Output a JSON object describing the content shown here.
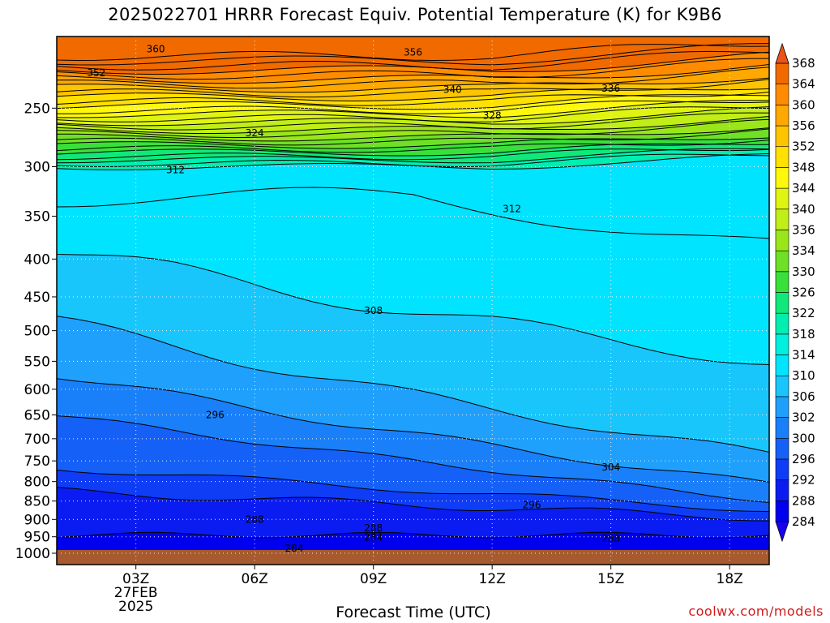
{
  "title": "2025022701 HRRR Forecast Equiv. Potential Temperature (K) for K9B6",
  "credit": "coolwx.com/models",
  "chart_data": {
    "type": "heatmap",
    "title": "2025022701 HRRR Forecast Equiv. Potential Temperature (K) for K9B6",
    "xlabel": "Forecast Time (UTC)",
    "ylabel": "",
    "x_ticks": [
      {
        "hour": 3,
        "label": "03Z"
      },
      {
        "hour": 6,
        "label": "06Z"
      },
      {
        "hour": 9,
        "label": "09Z"
      },
      {
        "hour": 12,
        "label": "12Z"
      },
      {
        "hour": 15,
        "label": "15Z"
      },
      {
        "hour": 18,
        "label": "18Z"
      }
    ],
    "date_label": [
      "27FEB",
      "2025"
    ],
    "xlim": [
      1,
      19
    ],
    "y_ticks": [
      250,
      300,
      350,
      400,
      450,
      500,
      550,
      600,
      650,
      700,
      750,
      800,
      850,
      900,
      950,
      1000
    ],
    "ylim_hpa": [
      200,
      1000
    ],
    "y_scale": "log",
    "colorbar": {
      "levels": [
        284,
        288,
        292,
        296,
        300,
        302,
        306,
        310,
        314,
        318,
        322,
        326,
        330,
        334,
        336,
        340,
        344,
        348,
        352,
        356,
        360,
        364,
        368
      ],
      "colors": [
        "#0000ee",
        "#0a1cf2",
        "#0f3cf5",
        "#1560f7",
        "#1a80fa",
        "#1fa0fc",
        "#18c6fc",
        "#00e4ff",
        "#00f0e0",
        "#00eeb0",
        "#10e87a",
        "#3ae03a",
        "#6ee026",
        "#9ae61a",
        "#c0ee16",
        "#e0f412",
        "#fff80c",
        "#ffe000",
        "#ffc400",
        "#ffa800",
        "#ff8c00",
        "#f06a00"
      ],
      "upper_color": "#e8541a",
      "lower_color": "#1a00f0"
    },
    "contour_labels": [
      {
        "value": "360",
        "hour": 3.5,
        "p": 208
      },
      {
        "value": "356",
        "hour": 10.0,
        "p": 210
      },
      {
        "value": "352",
        "hour": 2.0,
        "p": 224
      },
      {
        "value": "340",
        "hour": 11.0,
        "p": 236
      },
      {
        "value": "336",
        "hour": 15.0,
        "p": 235
      },
      {
        "value": "328",
        "hour": 12.0,
        "p": 256
      },
      {
        "value": "324",
        "hour": 6.0,
        "p": 270
      },
      {
        "value": "312",
        "hour": 4.0,
        "p": 303
      },
      {
        "value": "312",
        "hour": 12.5,
        "p": 342
      },
      {
        "value": "308",
        "hour": 9.0,
        "p": 470
      },
      {
        "value": "296",
        "hour": 5.0,
        "p": 650
      },
      {
        "value": "304",
        "hour": 15.0,
        "p": 765
      },
      {
        "value": "296",
        "hour": 13.0,
        "p": 860
      },
      {
        "value": "288",
        "hour": 6.0,
        "p": 900
      },
      {
        "value": "288",
        "hour": 9.0,
        "p": 925
      },
      {
        "value": "284",
        "hour": 9.0,
        "p": 952
      },
      {
        "value": "288",
        "hour": 15.0,
        "p": 955
      },
      {
        "value": "284",
        "hour": 7.0,
        "p": 985
      }
    ],
    "grid": true,
    "legend": "right"
  }
}
